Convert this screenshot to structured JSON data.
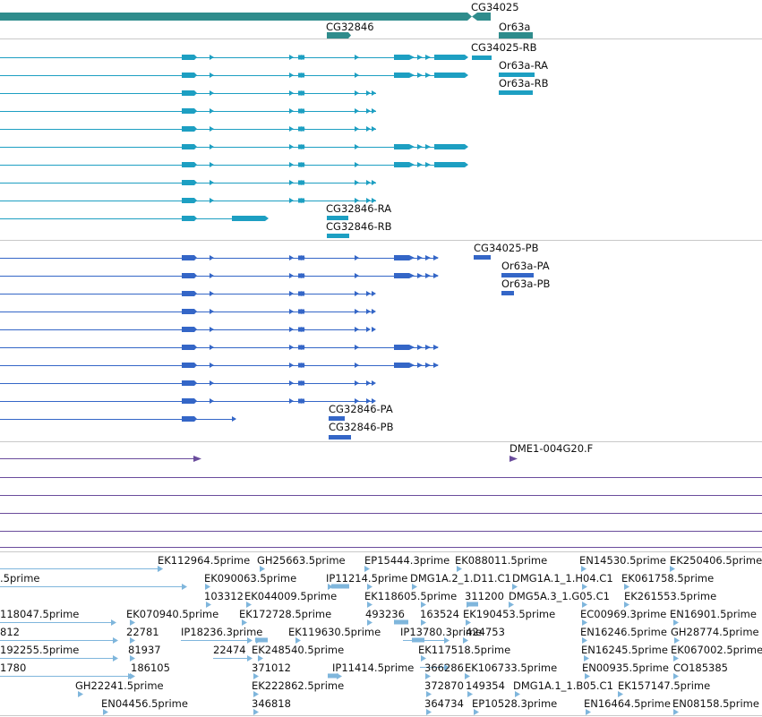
{
  "colors": {
    "gene": "#2f8c8c",
    "transcript": "#1d9fc2",
    "protein": "#3466c7",
    "cdna": "#6a4c9c",
    "est": "#7fb6dc",
    "divider": "#c9c9c9"
  },
  "genes": {
    "labels": [
      "CG34025",
      "CG32846",
      "Or63a"
    ]
  },
  "transcripts": {
    "labels": [
      "CG34025-RB",
      "Or63a-RA",
      "Or63a-RB",
      "CG32846-RA",
      "CG32846-RB"
    ]
  },
  "proteins": {
    "labels": [
      "CG34025-PB",
      "Or63a-PA",
      "Or63a-PB",
      "CG32846-PA",
      "CG32846-PB"
    ]
  },
  "cdna": {
    "labels": [
      "DME1-004G20.F"
    ]
  },
  "ests": {
    "labels": [
      "EK112964.5prime",
      "GH25663.5prime",
      "EP15444.3prime",
      "EK088011.5prime",
      "EN14530.5prime",
      "EK250406.5prime",
      ".5prime",
      "EK090063.5prime",
      "IP11214.5prime",
      "DMG1A.2_1.D11.C1",
      "DMG1A.1_1.H04.C1",
      "EK061758.5prime",
      "103312",
      "EK044009.5prime",
      "EK118605.5prime",
      "311200",
      "DMG5A.3_1.G05.C1",
      "EK261553.5prime",
      "118047.5prime",
      "EK070940.5prime",
      "EK172728.5prime",
      "493236",
      "163524",
      "EK190453.5prime",
      "EC00969.3prime",
      "EN16901.5prime",
      "812",
      "22781",
      "IP18236.3prime",
      "EK119630.5prime",
      "IP13780.3prime",
      "424753",
      "EN16246.5prime",
      "GH28774.5prime",
      "192255.5prime",
      "81937",
      "22474",
      "EK248540.5prime",
      "EK117518.5prime",
      "EN16245.5prime",
      "EK067002.5prime",
      "1780",
      "186105",
      "371012",
      "IP11414.5prime",
      "366286",
      "EK106733.5prime",
      "EN00935.5prime",
      "CO185385",
      "GH22241.5prime",
      "EK222862.5prime",
      "372870",
      "149354",
      "DMG1A.1_1.B05.C1",
      "EK157147.5prime",
      "EN04456.5prime",
      "346818",
      "364734",
      "EP10528.3prime",
      "EN16464.5prime",
      "EN08158.5prime"
    ]
  }
}
